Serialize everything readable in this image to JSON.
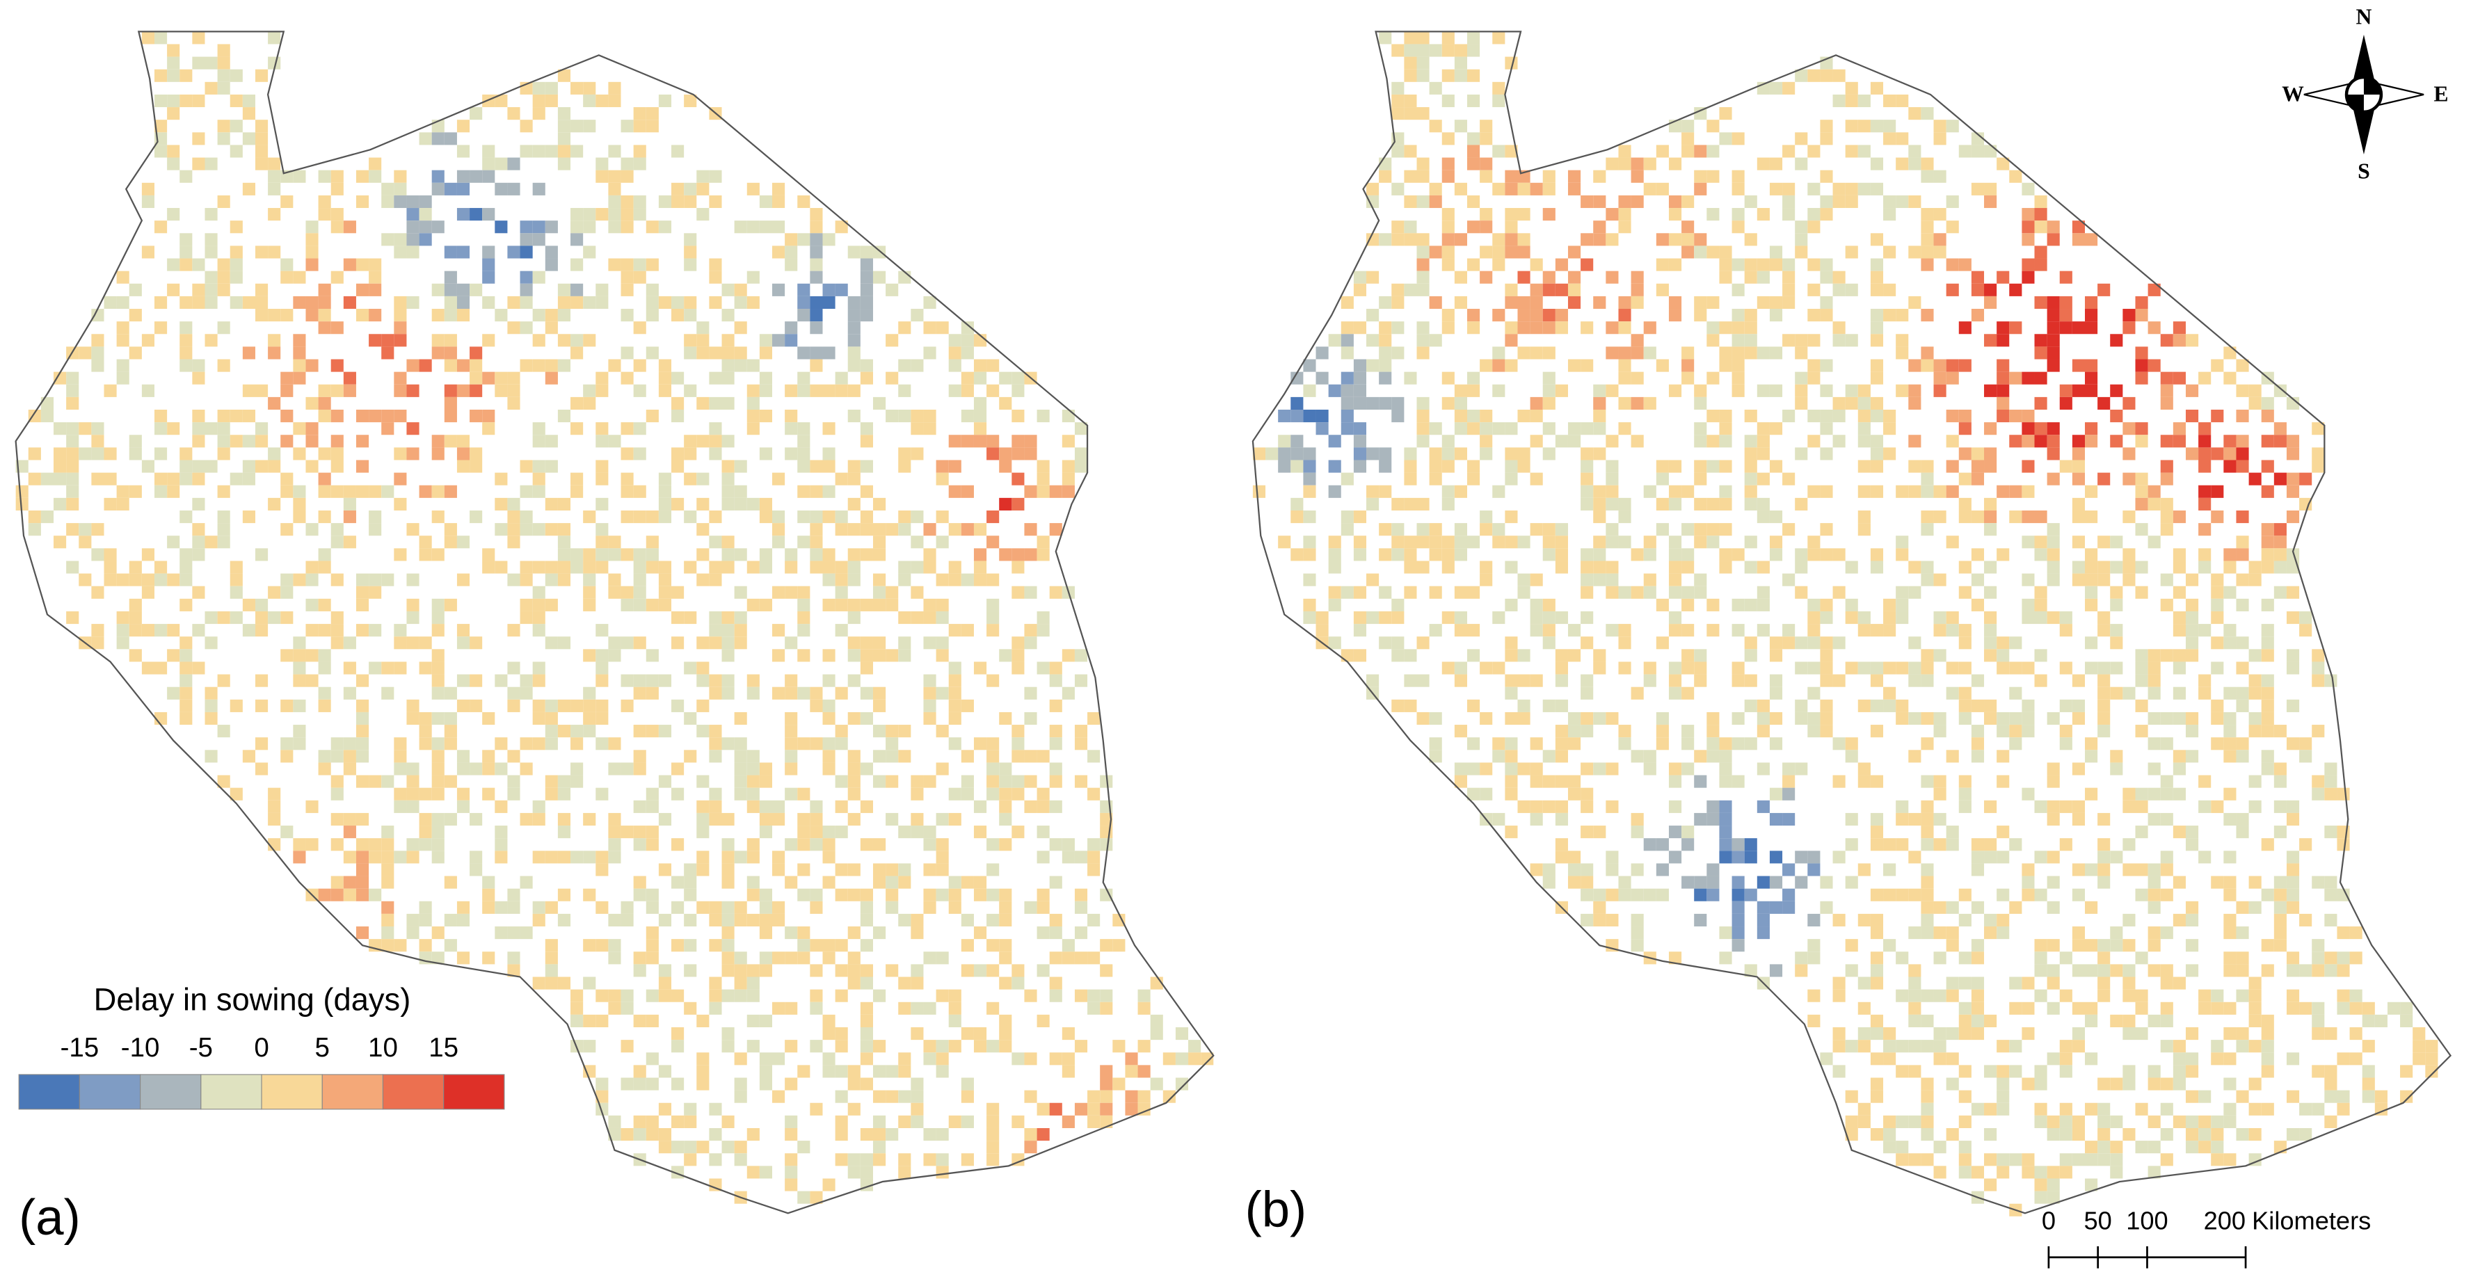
{
  "panels": [
    {
      "label": "(a)"
    },
    {
      "label": "(b)"
    }
  ],
  "legend": {
    "title": "Delay in sowing (days)",
    "ticks": [
      -15,
      -10,
      -5,
      0,
      5,
      10,
      15
    ],
    "colors": [
      "#4a78b8",
      "#7f9cc4",
      "#aab6bd",
      "#dfe2c0",
      "#f8d898",
      "#f4a878",
      "#ec7050",
      "#de3028"
    ]
  },
  "compass": {
    "n": "N",
    "s": "S",
    "e": "E",
    "w": "W"
  },
  "scale_bar": {
    "ticks": [
      0,
      50,
      100,
      200
    ],
    "unit": "Kilometers"
  }
}
